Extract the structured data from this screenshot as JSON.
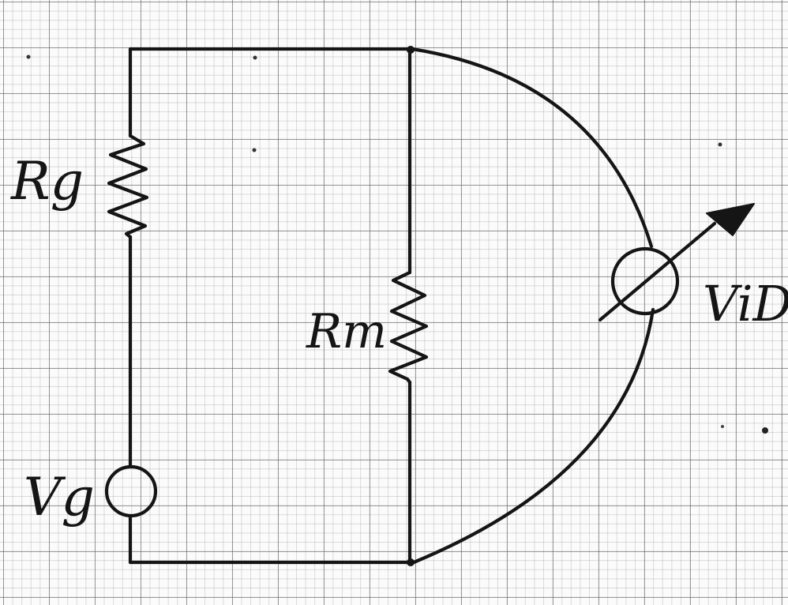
{
  "labels": {
    "source_resistor": "Rg",
    "meter_resistor": "Rm",
    "source": "Vg",
    "voltmeter": "ViD"
  },
  "colors": {
    "ink": "#151515",
    "paper": "#fbfbfb",
    "grid": "#8a8a8a"
  }
}
